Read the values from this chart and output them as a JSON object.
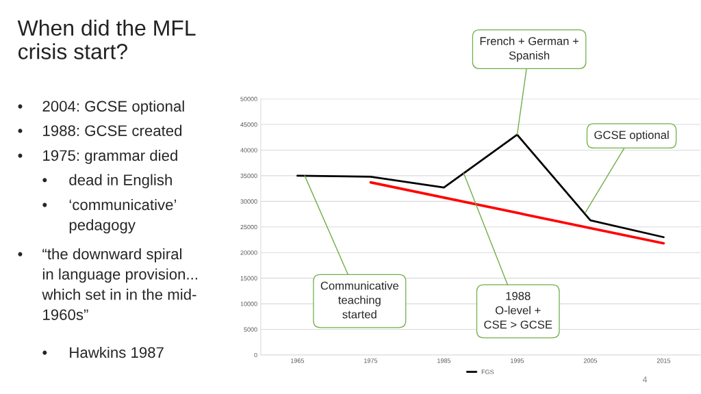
{
  "chart_data": {
    "type": "line",
    "title": "When did the MFL\ncrisis start?",
    "x": [
      1965,
      1975,
      1985,
      1995,
      2005,
      2015
    ],
    "series": [
      {
        "name": "FGS",
        "color": "#000000",
        "values": [
          35000,
          34800,
          32700,
          43000,
          26300,
          23000
        ]
      },
      {
        "type": "line",
        "color": "#ff0000",
        "x": [
          1975,
          2015
        ],
        "values": [
          33700,
          21800
        ]
      }
    ],
    "xlim": [
      1960,
      2020
    ],
    "xticks": [
      1965,
      1975,
      1985,
      1995,
      2005,
      2015
    ],
    "ylim": [
      0,
      50000
    ],
    "yticks": [
      0,
      5000,
      10000,
      15000,
      20000,
      25000,
      30000,
      35000,
      40000,
      45000,
      50000
    ],
    "grid": "y",
    "legend": "bottom",
    "marker": "none",
    "line_style": "solid",
    "annotations": [
      "• 2004: GCSE optional",
      "• 1988: GCSE created",
      "• 1975: grammar died",
      "• dead in English",
      "• ‘communicative’\npedagogy",
      "• “the downward spiral\nin language provision...\nwhich set in in the mid-\n1960s”",
      "• Hawkins 1987",
      {
        "text": "French + German +\nSpanish",
        "x": 1995,
        "y": 43000
      },
      {
        "text": "GCSE optional",
        "x": 2004.3,
        "y": 27800
      },
      {
        "text": "Communicative\nteaching\nstarted",
        "x": 1966,
        "y": 35000
      },
      {
        "text": "1988\nO-level +\nCSE > GCSE",
        "x": 1987.7,
        "y": 35500
      },
      "4"
    ]
  }
}
